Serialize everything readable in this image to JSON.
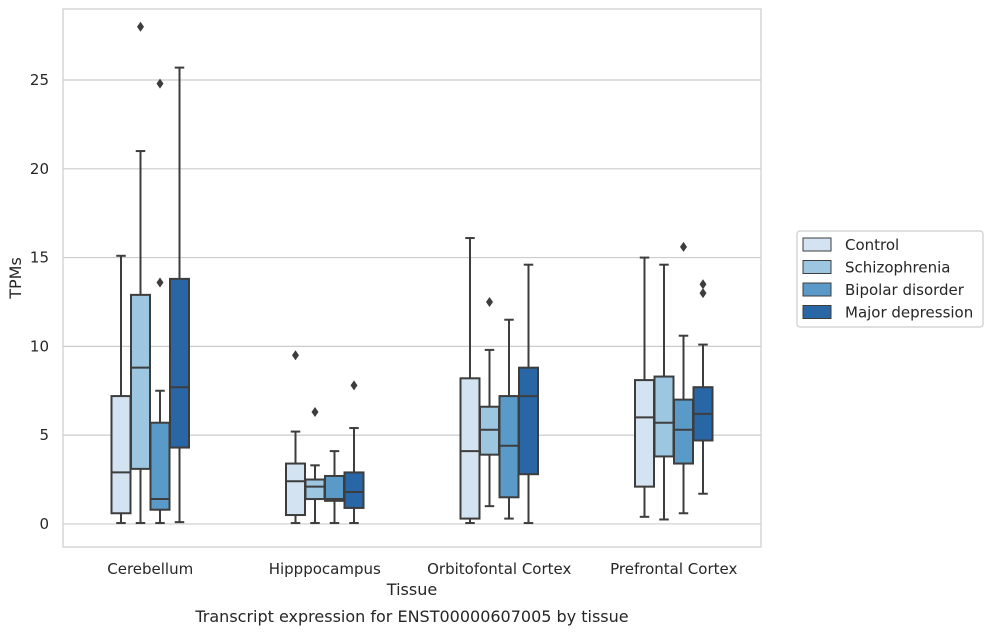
{
  "chart_data": {
    "type": "box",
    "title": "",
    "caption": "Transcript expression for ENST00000607005 by tissue",
    "xlabel": "Tissue",
    "ylabel": "TPMs",
    "ylim": [
      -1.3,
      29
    ],
    "yticks": [
      0,
      5,
      10,
      15,
      20,
      25
    ],
    "grid": "horizontal",
    "legend_position": "right",
    "categories": [
      "Cerebellum",
      "Hipppocampus",
      "Orbitofontal Cortex",
      "Prefrontal Cortex"
    ],
    "series": [
      {
        "name": "Control",
        "color": "#d4e3f1",
        "boxes": [
          {
            "min": 0.05,
            "q1": 0.6,
            "median": 2.9,
            "q3": 7.2,
            "max": 15.1,
            "outliers": []
          },
          {
            "min": 0.05,
            "q1": 0.5,
            "median": 2.4,
            "q3": 3.4,
            "max": 5.2,
            "outliers": [
              9.5
            ]
          },
          {
            "min": 0.05,
            "q1": 0.3,
            "median": 4.1,
            "q3": 8.2,
            "max": 16.1,
            "outliers": []
          },
          {
            "min": 0.4,
            "q1": 2.1,
            "median": 6.0,
            "q3": 8.1,
            "max": 15.0,
            "outliers": []
          }
        ]
      },
      {
        "name": "Schizophrenia",
        "color": "#9dc7e0",
        "boxes": [
          {
            "min": 0.05,
            "q1": 3.1,
            "median": 8.8,
            "q3": 12.9,
            "max": 21.0,
            "outliers": [
              28.0
            ]
          },
          {
            "min": 0.05,
            "q1": 1.4,
            "median": 2.1,
            "q3": 2.5,
            "max": 3.3,
            "outliers": [
              6.3
            ]
          },
          {
            "min": 1.0,
            "q1": 3.9,
            "median": 5.3,
            "q3": 6.6,
            "max": 9.8,
            "outliers": [
              12.5
            ]
          },
          {
            "min": 0.25,
            "q1": 3.8,
            "median": 5.7,
            "q3": 8.3,
            "max": 14.6,
            "outliers": []
          }
        ]
      },
      {
        "name": "Bipolar disorder",
        "color": "#5a9ac8",
        "boxes": [
          {
            "min": 0.05,
            "q1": 0.8,
            "median": 1.4,
            "q3": 5.7,
            "max": 7.5,
            "outliers": [
              13.6,
              24.8
            ]
          },
          {
            "min": 0.05,
            "q1": 1.3,
            "median": 1.4,
            "q3": 2.7,
            "max": 4.1,
            "outliers": []
          },
          {
            "min": 0.3,
            "q1": 1.5,
            "median": 4.4,
            "q3": 7.2,
            "max": 11.5,
            "outliers": []
          },
          {
            "min": 0.6,
            "q1": 3.4,
            "median": 5.3,
            "q3": 7.0,
            "max": 10.6,
            "outliers": [
              15.6
            ]
          }
        ]
      },
      {
        "name": "Major depression",
        "color": "#2966a6",
        "boxes": [
          {
            "min": 0.1,
            "q1": 4.3,
            "median": 7.7,
            "q3": 13.8,
            "max": 25.7,
            "outliers": []
          },
          {
            "min": 0.05,
            "q1": 0.9,
            "median": 1.8,
            "q3": 2.9,
            "max": 5.4,
            "outliers": [
              7.8
            ]
          },
          {
            "min": 0.05,
            "q1": 2.8,
            "median": 7.2,
            "q3": 8.8,
            "max": 14.6,
            "outliers": []
          },
          {
            "min": 1.7,
            "q1": 4.7,
            "median": 6.2,
            "q3": 7.7,
            "max": 10.1,
            "outliers": [
              13.0,
              13.5
            ]
          }
        ]
      }
    ]
  }
}
